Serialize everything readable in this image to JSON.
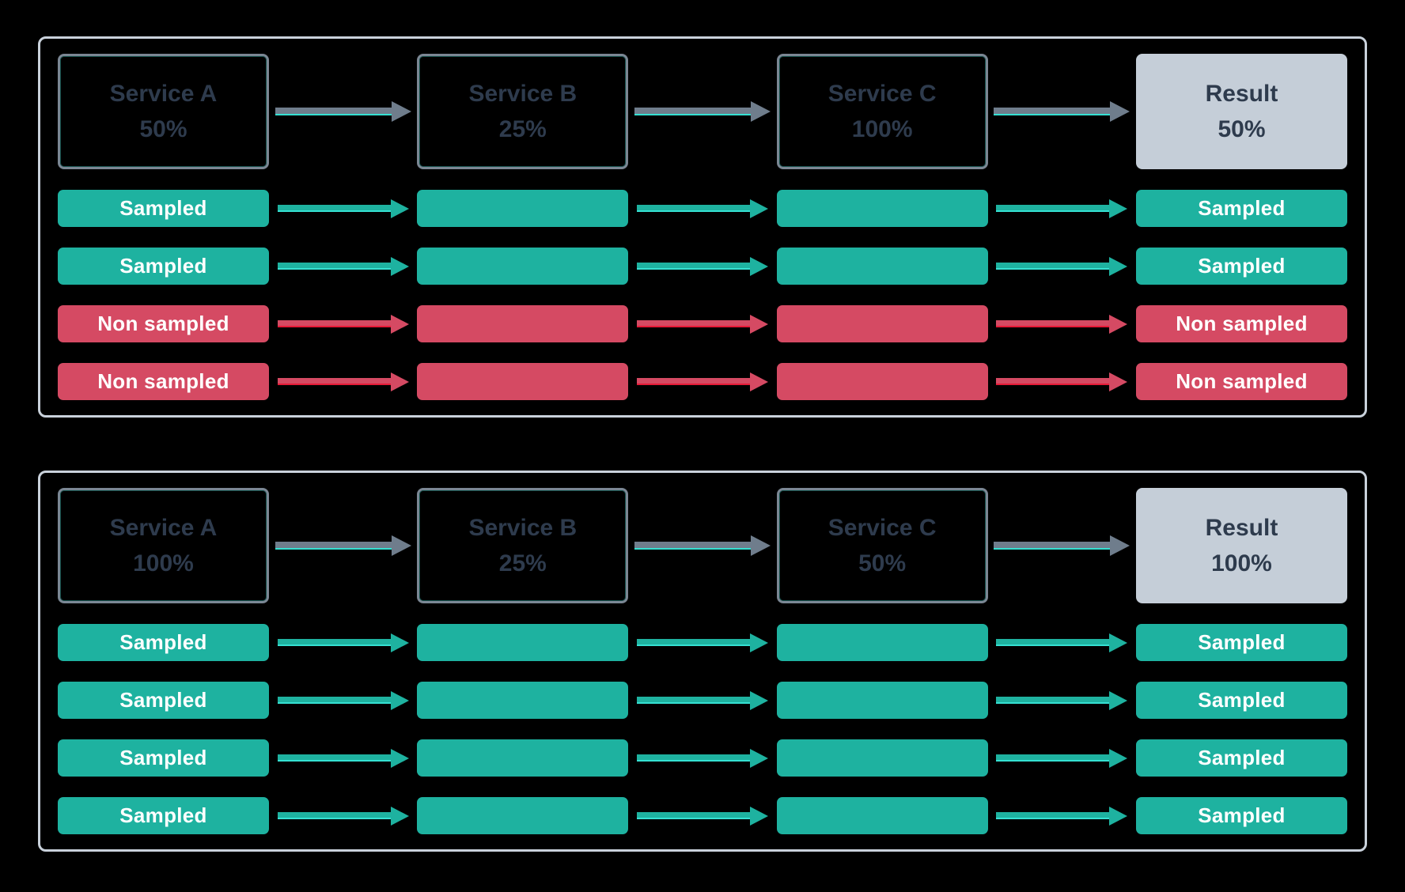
{
  "colors": {
    "background": "#000000",
    "panel_border": "#C9D1DB",
    "service_box_border": "#7B8794",
    "service_text": "#2E3B4D",
    "result_fill": "#C5CED8",
    "sampled_green": "#1EB2A0",
    "non_sampled_red": "#D54A63",
    "arrow_slate": "#6F7D8C",
    "arrow_underline_cyan": "#35E0D2",
    "arrow_underline_red": "#E61937",
    "bar_text": "#FFFFFF"
  },
  "panels": [
    {
      "services": [
        {
          "label": "Service A",
          "value": "50%"
        },
        {
          "label": "Service B",
          "value": "25%"
        },
        {
          "label": "Service C",
          "value": "100%"
        },
        {
          "label": "Result",
          "value": "50%"
        }
      ],
      "rows": [
        {
          "status": "sampled",
          "cells": [
            "Sampled",
            "",
            "",
            "Sampled"
          ]
        },
        {
          "status": "sampled",
          "cells": [
            "Sampled",
            "",
            "",
            "Sampled"
          ]
        },
        {
          "status": "non_sampled",
          "cells": [
            "Non sampled",
            "",
            "",
            "Non sampled"
          ]
        },
        {
          "status": "non_sampled",
          "cells": [
            "Non sampled",
            "",
            "",
            "Non sampled"
          ]
        }
      ]
    },
    {
      "services": [
        {
          "label": "Service A",
          "value": "100%"
        },
        {
          "label": "Service B",
          "value": "25%"
        },
        {
          "label": "Service C",
          "value": "50%"
        },
        {
          "label": "Result",
          "value": "100%"
        }
      ],
      "rows": [
        {
          "status": "sampled",
          "cells": [
            "Sampled",
            "",
            "",
            "Sampled"
          ]
        },
        {
          "status": "sampled",
          "cells": [
            "Sampled",
            "",
            "",
            "Sampled"
          ]
        },
        {
          "status": "sampled",
          "cells": [
            "Sampled",
            "",
            "",
            "Sampled"
          ]
        },
        {
          "status": "sampled",
          "cells": [
            "Sampled",
            "",
            "",
            "Sampled"
          ]
        }
      ]
    }
  ]
}
